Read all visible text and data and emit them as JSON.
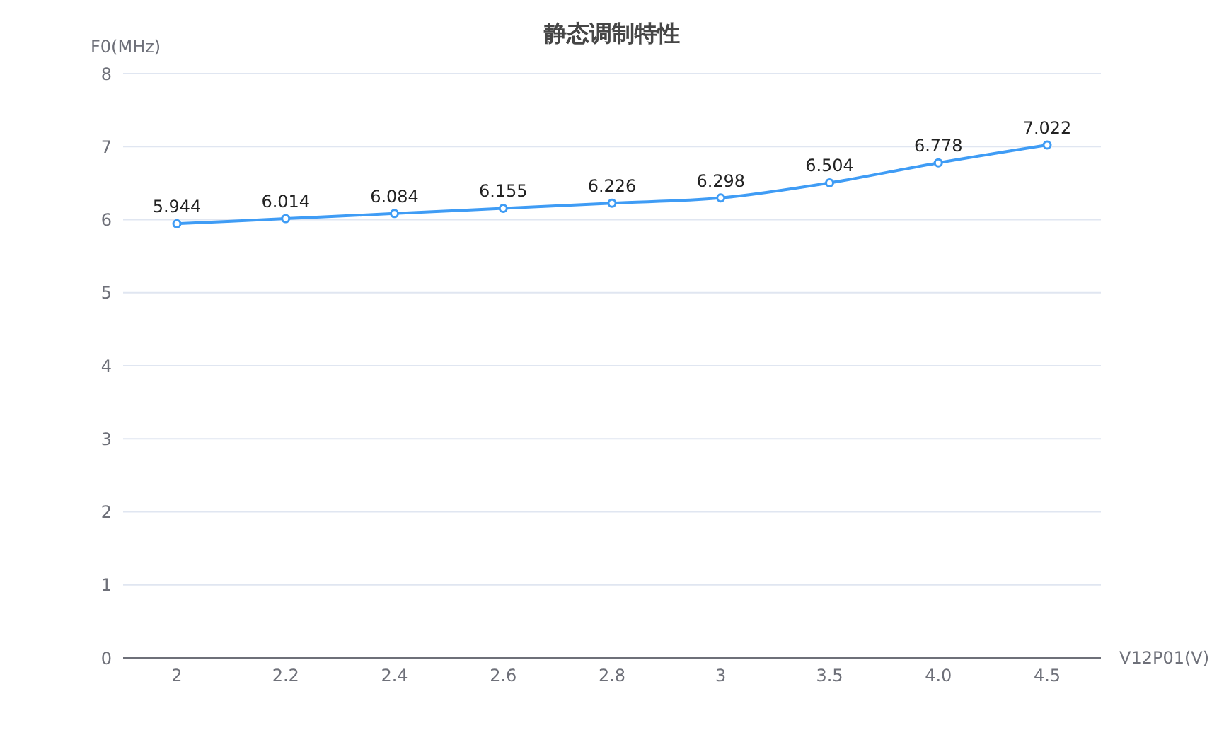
{
  "chart_data": {
    "type": "line",
    "title": "静态调制特性",
    "xlabel": "V12P01(V)",
    "ylabel": "F0(MHz)",
    "categories": [
      "2",
      "2.2",
      "2.4",
      "2.6",
      "2.8",
      "3",
      "3.5",
      "4.0",
      "4.5"
    ],
    "series": [
      {
        "color": "#3f9cf5",
        "values": [
          5.944,
          6.014,
          6.084,
          6.155,
          6.226,
          6.298,
          6.504,
          6.778,
          7.022
        ]
      }
    ],
    "ylim": [
      0,
      8
    ],
    "yticks": [
      0,
      1,
      2,
      3,
      4,
      5,
      6,
      7,
      8
    ],
    "grid": "y",
    "marker": "circle",
    "line_style": "solid",
    "data_labels": true,
    "legend": false
  }
}
